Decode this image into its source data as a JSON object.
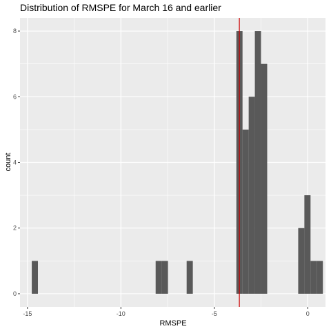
{
  "chart_data": {
    "type": "bar",
    "title": "Distribution of RMSPE for March 16 and earlier",
    "xlabel": "RMSPE",
    "ylabel": "count",
    "xlim": [
      -15.4,
      0.95
    ],
    "ylim": [
      -0.4,
      8.4
    ],
    "x_ticks": [
      -15,
      -10,
      -5,
      0
    ],
    "y_ticks": [
      0,
      2,
      4,
      6,
      8
    ],
    "grid": true,
    "bin_width": 0.33,
    "bar_color": "#595959",
    "panel_background": "#ebebeb",
    "bins": [
      {
        "x0": -14.77,
        "x1": -14.44,
        "count": 1
      },
      {
        "x0": -8.14,
        "x1": -7.81,
        "count": 1
      },
      {
        "x0": -7.81,
        "x1": -7.48,
        "count": 1
      },
      {
        "x0": -6.48,
        "x1": -6.15,
        "count": 1
      },
      {
        "x0": -3.82,
        "x1": -3.49,
        "count": 8
      },
      {
        "x0": -3.49,
        "x1": -3.16,
        "count": 5
      },
      {
        "x0": -3.16,
        "x1": -2.83,
        "count": 6
      },
      {
        "x0": -2.83,
        "x1": -2.5,
        "count": 8
      },
      {
        "x0": -2.5,
        "x1": -2.17,
        "count": 7
      },
      {
        "x0": -0.51,
        "x1": -0.18,
        "count": 2
      },
      {
        "x0": -0.18,
        "x1": 0.15,
        "count": 3
      },
      {
        "x0": 0.15,
        "x1": 0.48,
        "count": 1
      },
      {
        "x0": 0.48,
        "x1": 0.81,
        "count": 1
      }
    ],
    "reference_line": {
      "x": -3.66,
      "color": "#cc0000"
    }
  }
}
